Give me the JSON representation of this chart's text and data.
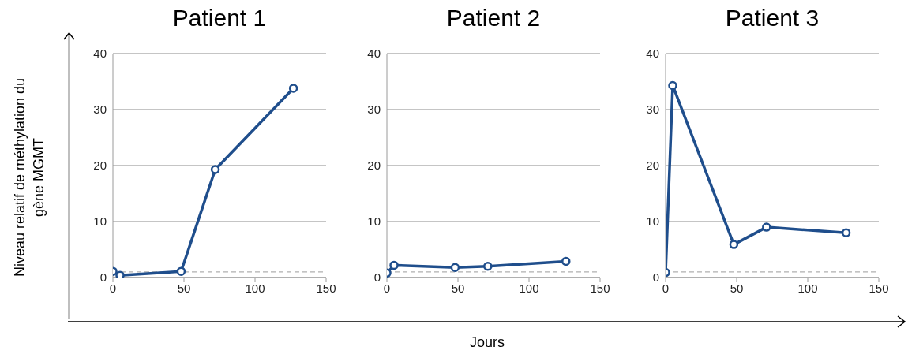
{
  "chart_data": [
    {
      "type": "line",
      "title": "Patient 1",
      "ylabel": "Niveau relatif de méthylation du gène MGMT",
      "x": [
        0,
        5,
        48,
        72,
        127
      ],
      "series": [
        {
          "color": "#1f4e8c",
          "values": [
            1.1,
            0.4,
            1.1,
            19.3,
            33.8
          ]
        }
      ],
      "xlim": [
        0,
        150
      ],
      "xticks": [
        0,
        50,
        100,
        150
      ],
      "ylim": [
        0,
        40
      ],
      "yticks": [
        0,
        10,
        20,
        30,
        40
      ],
      "grid": "y",
      "marker": "circle",
      "line_style": "solid",
      "ref_lines": [
        {
          "axis": "y",
          "value": 1,
          "color": "#b0b0b0",
          "line_style": "dashed"
        }
      ]
    },
    {
      "type": "line",
      "title": "Patient 2",
      "xlabel": "Jours",
      "x": [
        0,
        5,
        48,
        71,
        126
      ],
      "series": [
        {
          "color": "#1f4e8c",
          "values": [
            0.8,
            2.2,
            1.8,
            2.0,
            2.9
          ]
        }
      ],
      "xlim": [
        0,
        150
      ],
      "xticks": [
        0,
        50,
        100,
        150
      ],
      "ylim": [
        0,
        40
      ],
      "yticks": [
        0,
        10,
        20,
        30,
        40
      ],
      "grid": "y",
      "marker": "circle",
      "line_style": "solid",
      "ref_lines": [
        {
          "axis": "y",
          "value": 1,
          "color": "#b0b0b0",
          "line_style": "dashed"
        }
      ]
    },
    {
      "type": "line",
      "title": "Patient 3",
      "x": [
        0,
        5,
        48,
        71,
        127
      ],
      "series": [
        {
          "color": "#1f4e8c",
          "values": [
            0.9,
            34.3,
            5.9,
            9.0,
            8.0
          ]
        }
      ],
      "xlim": [
        0,
        150
      ],
      "xticks": [
        0,
        50,
        100,
        150
      ],
      "ylim": [
        0,
        40
      ],
      "yticks": [
        0,
        10,
        20,
        30,
        40
      ],
      "grid": "y",
      "marker": "circle",
      "line_style": "solid",
      "ref_lines": [
        {
          "axis": "y",
          "value": 1,
          "color": "#b0b0b0",
          "line_style": "dashed"
        }
      ]
    }
  ]
}
